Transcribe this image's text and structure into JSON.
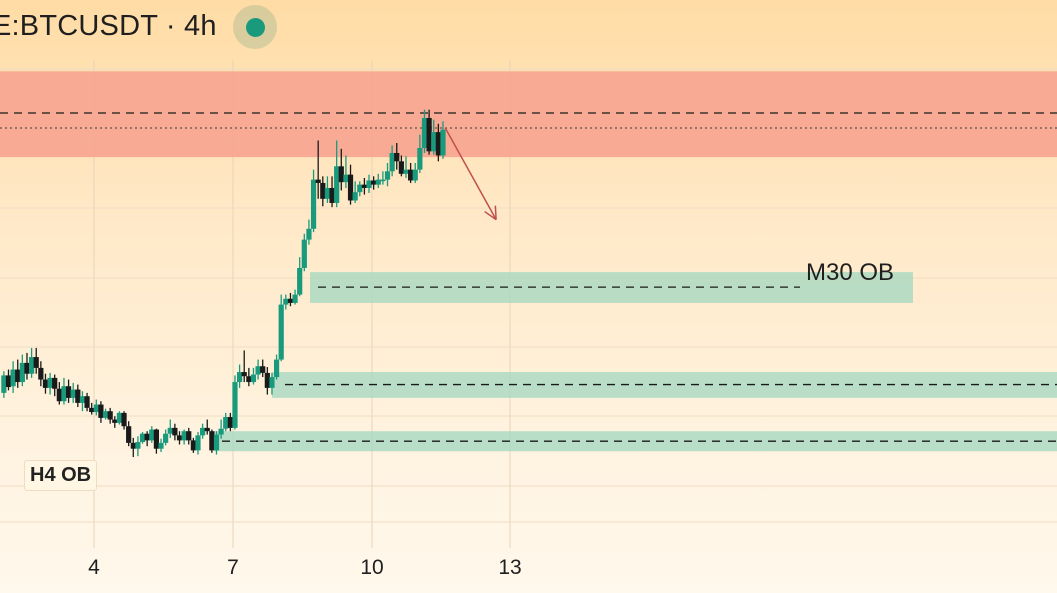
{
  "header": {
    "title": "E:BTCUSDT · 4h",
    "status_color": "#1a9a7c"
  },
  "colors": {
    "bull": "#1a9a7c",
    "bear": "#1a1a1a",
    "supply_zone": "#f7a08e",
    "demand_zone": "#a8d8c0",
    "arrow": "#c0504d"
  },
  "chart_data": {
    "type": "candlestick",
    "x_ticks": [
      "4",
      "7",
      "10",
      "13"
    ],
    "zones": [
      {
        "kind": "supply",
        "label": "",
        "top": 69880,
        "bottom": 68850
      },
      {
        "kind": "demand",
        "label": "M30 OB",
        "top": 67470,
        "bottom": 67100
      },
      {
        "kind": "demand",
        "label": "",
        "top": 66270,
        "bottom": 65960
      },
      {
        "kind": "demand",
        "label": "H4 OB",
        "top": 65560,
        "bottom": 65320
      }
    ],
    "dashed_levels": [
      69380,
      67290,
      66120,
      65440
    ],
    "dotted_levels": [
      69200
    ],
    "arrow": {
      "from": [
        11.6,
        69200
      ],
      "to": [
        12.7,
        68100
      ]
    },
    "candles": [
      [
        2.05,
        66020,
        66230,
        65960,
        66280
      ],
      [
        2.15,
        66230,
        66090,
        66050,
        66300
      ],
      [
        2.25,
        66100,
        66300,
        66020,
        66400
      ],
      [
        2.35,
        66300,
        66150,
        66080,
        66420
      ],
      [
        2.45,
        66150,
        66380,
        66100,
        66480
      ],
      [
        2.55,
        66380,
        66250,
        66180,
        66500
      ],
      [
        2.65,
        66250,
        66450,
        66200,
        66560
      ],
      [
        2.75,
        66450,
        66320,
        66250,
        66560
      ],
      [
        2.85,
        66320,
        66180,
        66100,
        66400
      ],
      [
        2.95,
        66180,
        66080,
        66010,
        66250
      ],
      [
        3.05,
        66080,
        66200,
        66000,
        66260
      ],
      [
        3.15,
        66200,
        66070,
        65980,
        66240
      ],
      [
        3.25,
        66070,
        65920,
        65880,
        66150
      ],
      [
        3.35,
        65920,
        66100,
        65880,
        66200
      ],
      [
        3.45,
        66100,
        65960,
        65900,
        66180
      ],
      [
        3.55,
        65960,
        66060,
        65900,
        66140
      ],
      [
        3.65,
        66060,
        65900,
        65850,
        66120
      ],
      [
        3.75,
        65900,
        65980,
        65800,
        66040
      ],
      [
        3.85,
        65980,
        65840,
        65800,
        66020
      ],
      [
        3.95,
        65840,
        65790,
        65760,
        65900
      ],
      [
        4.05,
        65790,
        65880,
        65750,
        65940
      ],
      [
        4.15,
        65880,
        65720,
        65660,
        65920
      ],
      [
        4.25,
        65720,
        65800,
        65700,
        65830
      ],
      [
        4.35,
        65800,
        65700,
        65650,
        65840
      ],
      [
        4.45,
        65700,
        65660,
        65600,
        65740
      ],
      [
        4.55,
        65660,
        65780,
        65640,
        65800
      ],
      [
        4.65,
        65780,
        65620,
        65580,
        65800
      ],
      [
        4.75,
        65620,
        65420,
        65380,
        65680
      ],
      [
        4.85,
        65420,
        65350,
        65250,
        65480
      ],
      [
        4.95,
        65350,
        65430,
        65260,
        65500
      ],
      [
        5.05,
        65430,
        65530,
        65410,
        65550
      ],
      [
        5.15,
        65530,
        65450,
        65380,
        65560
      ],
      [
        5.25,
        65450,
        65580,
        65420,
        65620
      ],
      [
        5.35,
        65580,
        65350,
        65290,
        65590
      ],
      [
        5.45,
        65350,
        65420,
        65310,
        65470
      ],
      [
        5.55,
        65420,
        65530,
        65390,
        65580
      ],
      [
        5.65,
        65530,
        65600,
        65480,
        65700
      ],
      [
        5.75,
        65600,
        65510,
        65450,
        65650
      ],
      [
        5.85,
        65510,
        65450,
        65400,
        65560
      ],
      [
        5.95,
        65450,
        65560,
        65400,
        65580
      ],
      [
        6.05,
        65560,
        65450,
        65400,
        65600
      ],
      [
        6.15,
        65450,
        65330,
        65300,
        65480
      ],
      [
        6.25,
        65330,
        65510,
        65280,
        65550
      ],
      [
        6.35,
        65510,
        65600,
        65470,
        65650
      ],
      [
        6.45,
        65600,
        65560,
        65520,
        65700
      ],
      [
        6.55,
        65560,
        65330,
        65300,
        65580
      ],
      [
        6.65,
        65330,
        65520,
        65280,
        65560
      ],
      [
        6.75,
        65520,
        65590,
        65470,
        65700
      ],
      [
        6.85,
        65590,
        65730,
        65560,
        65780
      ],
      [
        6.95,
        65730,
        65600,
        65560,
        65780
      ],
      [
        7.05,
        65600,
        66150,
        65580,
        66230
      ],
      [
        7.15,
        66150,
        66270,
        66080,
        66360
      ],
      [
        7.25,
        66270,
        66220,
        66150,
        66530
      ],
      [
        7.35,
        66220,
        66150,
        66100,
        66320
      ],
      [
        7.45,
        66150,
        66240,
        66120,
        66320
      ],
      [
        7.55,
        66240,
        66340,
        66180,
        66420
      ],
      [
        7.65,
        66340,
        66260,
        66210,
        66420
      ],
      [
        7.75,
        66260,
        66080,
        66000,
        66330
      ],
      [
        7.85,
        66080,
        66210,
        66000,
        66260
      ],
      [
        7.95,
        66210,
        66420,
        66180,
        66480
      ],
      [
        8.05,
        66420,
        67080,
        66400,
        67200
      ],
      [
        8.15,
        67080,
        67150,
        67020,
        67200
      ],
      [
        8.25,
        67150,
        67100,
        67060,
        67220
      ],
      [
        8.35,
        67100,
        67200,
        67080,
        67260
      ],
      [
        8.45,
        67200,
        67520,
        67180,
        67650
      ],
      [
        8.55,
        67520,
        67860,
        67480,
        67930
      ],
      [
        8.65,
        67860,
        67990,
        67800,
        68100
      ],
      [
        8.75,
        67990,
        68580,
        67950,
        68700
      ],
      [
        8.85,
        68580,
        68540,
        68350,
        69050
      ],
      [
        8.95,
        68540,
        68350,
        68260,
        68620
      ],
      [
        9.05,
        68350,
        68480,
        68300,
        68620
      ],
      [
        9.15,
        68480,
        68300,
        68250,
        68620
      ],
      [
        9.25,
        68300,
        68740,
        68250,
        69050
      ],
      [
        9.35,
        68740,
        68550,
        68450,
        68950
      ],
      [
        9.45,
        68550,
        68640,
        68480,
        68870
      ],
      [
        9.55,
        68640,
        68330,
        68280,
        68760
      ],
      [
        9.65,
        68330,
        68430,
        68300,
        68560
      ],
      [
        9.75,
        68430,
        68520,
        68380,
        68560
      ],
      [
        9.85,
        68520,
        68480,
        68400,
        68600
      ],
      [
        9.95,
        68480,
        68570,
        68420,
        68640
      ],
      [
        10.05,
        68570,
        68520,
        68460,
        68620
      ],
      [
        10.15,
        68520,
        68580,
        68480,
        68650
      ],
      [
        10.25,
        68580,
        68580,
        68520,
        68680
      ],
      [
        10.35,
        68580,
        68680,
        68500,
        68780
      ],
      [
        10.45,
        68680,
        68900,
        68620,
        68990
      ],
      [
        10.55,
        68900,
        68800,
        68700,
        69020
      ],
      [
        10.65,
        68800,
        68650,
        68620,
        68870
      ],
      [
        10.75,
        68650,
        68700,
        68600,
        68860
      ],
      [
        10.85,
        68700,
        68570,
        68540,
        68780
      ],
      [
        10.95,
        68570,
        68700,
        68540,
        68780
      ],
      [
        11.05,
        68700,
        68960,
        68660,
        69120
      ],
      [
        11.15,
        68960,
        69320,
        68900,
        69420
      ],
      [
        11.25,
        69320,
        68920,
        68880,
        69420
      ],
      [
        11.35,
        68920,
        69150,
        68880,
        69300
      ],
      [
        11.45,
        69150,
        68870,
        68800,
        69250
      ],
      [
        11.55,
        68870,
        69180,
        68830,
        69280
      ]
    ]
  }
}
